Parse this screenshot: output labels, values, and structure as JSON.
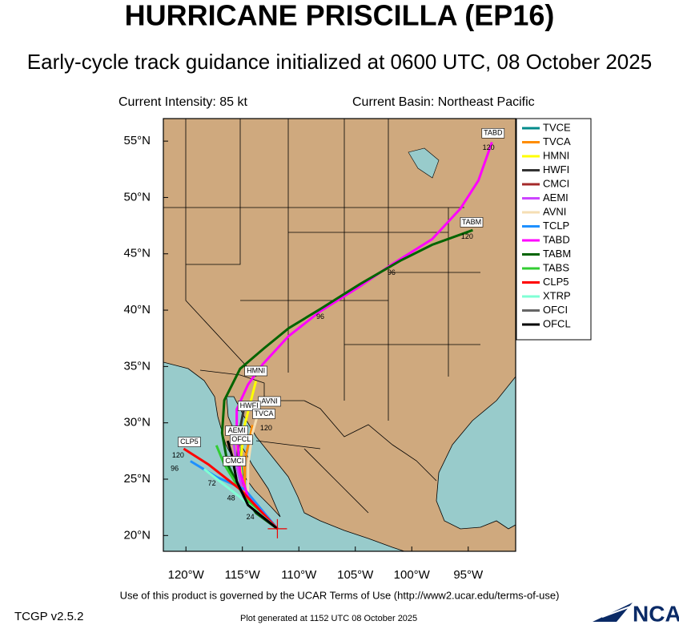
{
  "header": {
    "title": "HURRICANE PRISCILLA (EP16)",
    "subtitle": "Early-cycle track guidance initialized at 0600 UTC, 08 October 2025"
  },
  "info": {
    "intensity": "Current Intensity: 85 kt",
    "basin": "Current Basin: Northeast Pacific"
  },
  "map": {
    "xlim": [
      -122,
      -90.8
    ],
    "ylim": [
      18.6,
      57
    ],
    "xticks": [
      {
        "value": -120,
        "label": "120°W"
      },
      {
        "value": -115,
        "label": "115°W"
      },
      {
        "value": -110,
        "label": "110°W"
      },
      {
        "value": -105,
        "label": "105°W"
      },
      {
        "value": -100,
        "label": "100°W"
      },
      {
        "value": -95,
        "label": "95°W"
      }
    ],
    "yticks": [
      {
        "value": 20,
        "label": "20°N"
      },
      {
        "value": 25,
        "label": "25°N"
      },
      {
        "value": 30,
        "label": "30°N"
      },
      {
        "value": 35,
        "label": "35°N"
      },
      {
        "value": 40,
        "label": "40°N"
      },
      {
        "value": 45,
        "label": "45°N"
      },
      {
        "value": 50,
        "label": "50°N"
      },
      {
        "value": 55,
        "label": "55°N"
      }
    ],
    "storm": {
      "lon": -111.9,
      "lat": 20.6
    }
  },
  "tracks": [
    {
      "name": "TVCE",
      "color": "#008b8b",
      "lon": [
        -111.9,
        -114.8,
        -115.2,
        -114.8
      ],
      "lat": [
        20.6,
        23.4,
        27.0,
        29.1
      ]
    },
    {
      "name": "TVCA",
      "color": "#ff8c00",
      "lon": [
        -111.9,
        -114.8,
        -114.8,
        -114.1
      ],
      "lat": [
        20.6,
        23.4,
        26.6,
        29.8
      ]
    },
    {
      "name": "HMNI",
      "color": "#ffff00",
      "lon": [
        -111.9,
        -114.8,
        -115.2,
        -114.8,
        -113.8
      ],
      "lat": [
        20.6,
        23.1,
        26.3,
        29.8,
        33.7
      ]
    },
    {
      "name": "HWFI",
      "color": "#333333",
      "lon": [
        -111.9,
        -114.8,
        -115.5,
        -115.2,
        -114.8
      ],
      "lat": [
        20.6,
        23.1,
        26.3,
        29.5,
        31.6
      ]
    },
    {
      "name": "CMCI",
      "color": "#a52a2a",
      "lon": [
        -111.9,
        -114.5,
        -115.2,
        -115.5
      ],
      "lat": [
        20.6,
        23.4,
        25.5,
        26.6
      ]
    },
    {
      "name": "AEMI",
      "color": "#cc44ff",
      "lon": [
        -111.9,
        -114.8,
        -115.5,
        -115.9
      ],
      "lat": [
        20.6,
        23.1,
        26.3,
        29.1
      ]
    },
    {
      "name": "AVNI",
      "color": "#f5deb3",
      "lon": [
        -111.9,
        -114.5,
        -114.5,
        -114.1,
        -113.4
      ],
      "lat": [
        20.6,
        23.1,
        26.3,
        29.1,
        31.6
      ]
    },
    {
      "name": "TCLP",
      "color": "#1e90ff",
      "lon": [
        -111.9,
        -114.8,
        -117.3,
        -119.6
      ],
      "lat": [
        20.6,
        24.1,
        25.2,
        26.6
      ]
    },
    {
      "name": "TABD",
      "color": "#ff00ff",
      "lon": [
        -111.9,
        -114.5,
        -115.2,
        -115.5,
        -115.5,
        -114.5,
        -113.2,
        -110.9,
        -108.1,
        -104.6,
        -101.7,
        -98.2,
        -95.7,
        -94.1,
        -92.9
      ],
      "lat": [
        20.6,
        23.4,
        25.6,
        29.1,
        31.2,
        33.4,
        35.2,
        37.7,
        39.9,
        42.1,
        44.1,
        46.3,
        49.0,
        51.5,
        54.9
      ]
    },
    {
      "name": "TABM",
      "color": "#006400",
      "lon": [
        -111.9,
        -113.8,
        -115.2,
        -116.3,
        -116.8,
        -116.6,
        -115.2,
        -113.1,
        -110.9,
        -108.1,
        -104.6,
        -101.0,
        -98.2,
        -94.6
      ],
      "lat": [
        20.6,
        22.0,
        24.1,
        26.3,
        29.1,
        32.0,
        34.8,
        36.6,
        38.4,
        40.1,
        42.3,
        44.4,
        45.8,
        47.1
      ]
    },
    {
      "name": "TABS",
      "color": "#32cd32",
      "lon": [
        -111.9,
        -114.8,
        -116.6,
        -117.3
      ],
      "lat": [
        20.6,
        23.4,
        26.3,
        28.0
      ]
    },
    {
      "name": "CLP5",
      "color": "#ff0000",
      "lon": [
        -111.9,
        -115.2,
        -118.0,
        -120.2
      ],
      "lat": [
        20.6,
        24.1,
        26.3,
        27.7
      ]
    },
    {
      "name": "XTRP",
      "color": "#7fffd4",
      "lon": [
        -111.9,
        -115.2,
        -118.4
      ],
      "lat": [
        20.6,
        23.4,
        25.9
      ]
    },
    {
      "name": "OFCI",
      "color": "#666666",
      "lon": [
        -111.9,
        -114.5,
        -115.5,
        -115.9,
        -116.3
      ],
      "lat": [
        20.6,
        22.7,
        24.8,
        27.0,
        28.4
      ]
    },
    {
      "name": "OFCL",
      "color": "#000000",
      "lon": [
        -111.9,
        -114.5,
        -115.5,
        -115.9,
        -116.3
      ],
      "lat": [
        20.6,
        22.7,
        24.8,
        27.0,
        28.4
      ]
    }
  ],
  "track_labels": [
    {
      "text": "TABD",
      "lon": -92.8,
      "lat": 55.7
    },
    {
      "text": "TABM",
      "lon": -94.7,
      "lat": 47.8
    },
    {
      "text": "HMNI",
      "lon": -113.8,
      "lat": 34.6
    },
    {
      "text": "AVNI",
      "lon": -112.6,
      "lat": 31.9
    },
    {
      "text": "HWFI",
      "lon": -114.4,
      "lat": 31.5
    },
    {
      "text": "TVCA",
      "lon": -113.1,
      "lat": 30.8
    },
    {
      "text": "AEMI",
      "lon": -115.5,
      "lat": 29.3
    },
    {
      "text": "OFCL",
      "lon": -115.1,
      "lat": 28.5
    },
    {
      "text": "CMCI",
      "lon": -115.7,
      "lat": 26.6
    },
    {
      "text": "CLP5",
      "lon": -119.7,
      "lat": 28.3
    }
  ],
  "hour_labels": [
    {
      "text": "120",
      "lon": -93.2,
      "lat": 54.4
    },
    {
      "text": "120",
      "lon": -95.1,
      "lat": 46.5
    },
    {
      "text": "96",
      "lon": -101.8,
      "lat": 43.3
    },
    {
      "text": "96",
      "lon": -108.1,
      "lat": 39.4
    },
    {
      "text": "120",
      "lon": -120.7,
      "lat": 27.1
    },
    {
      "text": "96",
      "lon": -121.0,
      "lat": 25.9
    },
    {
      "text": "72",
      "lon": -117.7,
      "lat": 24.6
    },
    {
      "text": "48",
      "lon": -116.0,
      "lat": 23.3
    },
    {
      "text": "24",
      "lon": -114.3,
      "lat": 21.6
    },
    {
      "text": "120",
      "lon": -112.9,
      "lat": 29.5
    }
  ],
  "footer": {
    "terms": "Use of this product is governed by the UCAR Terms of Use (http://www2.ucar.edu/terms-of-use)",
    "version": "TCGP v2.5.2",
    "generated": "Plot generated at 1152 UTC   08 October 2025",
    "logo": "NCAR"
  }
}
